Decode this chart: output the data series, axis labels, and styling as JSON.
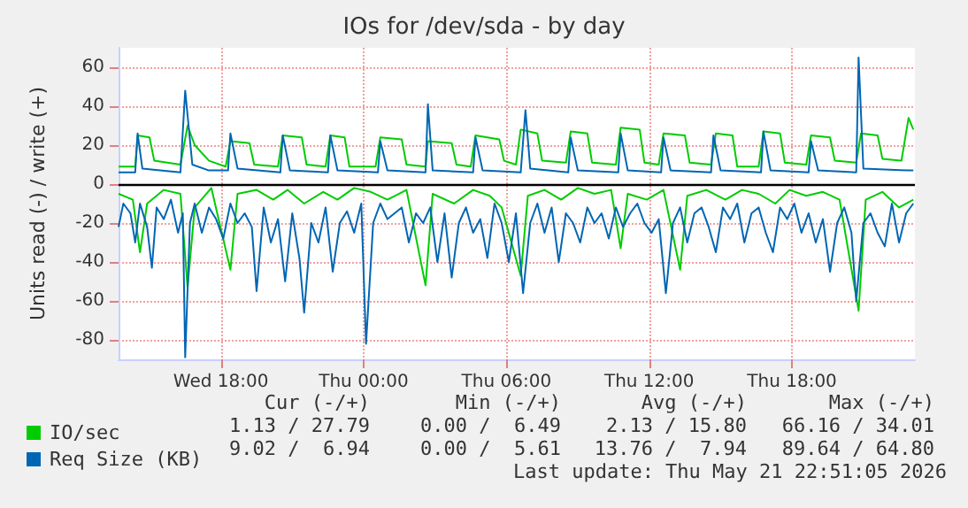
{
  "chart_data": {
    "type": "line",
    "title": "IOs for /dev/sda - by day",
    "ylabel": "Units read (-) / write (+)",
    "xlim": [
      "2026-05-20T13:42",
      "2026-05-21T23:10"
    ],
    "xticks": [
      {
        "value": "2026-05-20T18:00",
        "label": "Wed 18:00"
      },
      {
        "value": "2026-05-21T00:00",
        "label": "Thu 00:00"
      },
      {
        "value": "2026-05-21T06:00",
        "label": "Thu 06:00"
      },
      {
        "value": "2026-05-21T12:00",
        "label": "Thu 12:00"
      },
      {
        "value": "2026-05-21T18:00",
        "label": "Thu 18:00"
      }
    ],
    "ylim": [
      -90,
      70
    ],
    "yticks": [
      -80,
      -60,
      -40,
      -20,
      0,
      20,
      40,
      60
    ],
    "grid": true,
    "legend": "bottom left",
    "marker": "none",
    "line_style": "solid",
    "ref_lines": [
      {
        "axis": "y",
        "value": 0,
        "color": "#000000"
      }
    ],
    "annotations": [
      "Cur (-/+)",
      "Min (-/+)",
      "Avg (-/+)",
      "Max (-/+)",
      "1.13 / 27.79",
      "0.00 /  6.49",
      "2.13 / 15.80",
      "66.16 / 34.01",
      "9.02 /  6.94",
      "0.00 /  5.61",
      "13.76 /  7.94",
      "89.64 / 64.80",
      "Last update: Thu May 21 22:51:05 2026"
    ],
    "series": [
      {
        "name": null,
        "color": "#00cc00",
        "x": [
          "2026-05-20T13:42",
          "2026-05-20T14:18",
          "2026-05-20T14:36",
          "2026-05-20T14:54",
          "2026-05-20T15:36",
          "2026-05-20T16:18",
          "2026-05-20T16:36",
          "2026-05-20T16:54",
          "2026-05-20T17:36",
          "2026-05-20T18:24",
          "2026-05-20T18:42",
          "2026-05-20T19:30",
          "2026-05-20T20:12",
          "2026-05-20T20:48",
          "2026-05-20T21:30",
          "2026-05-20T22:18",
          "2026-05-20T22:54",
          "2026-05-20T23:36",
          "2026-05-21T00:18",
          "2026-05-21T01:00",
          "2026-05-21T01:48",
          "2026-05-21T02:36",
          "2026-05-21T02:54",
          "2026-05-21T03:48",
          "2026-05-21T04:36",
          "2026-05-21T05:18",
          "2026-05-21T05:48",
          "2026-05-21T06:36",
          "2026-05-21T06:54",
          "2026-05-21T07:36",
          "2026-05-21T08:18",
          "2026-05-21T09:00",
          "2026-05-21T09:42",
          "2026-05-21T10:24",
          "2026-05-21T10:48",
          "2026-05-21T11:06",
          "2026-05-21T11:54",
          "2026-05-21T12:36",
          "2026-05-21T13:18",
          "2026-05-21T13:36",
          "2026-05-21T14:24",
          "2026-05-21T15:12",
          "2026-05-21T15:54",
          "2026-05-21T16:36",
          "2026-05-21T17:18",
          "2026-05-21T17:54",
          "2026-05-21T18:36",
          "2026-05-21T19:18",
          "2026-05-21T20:00",
          "2026-05-21T20:48",
          "2026-05-21T21:06",
          "2026-05-21T21:48",
          "2026-05-21T22:30",
          "2026-05-21T23:06"
        ],
        "values": [
          -5,
          -8,
          -35,
          -10,
          -3,
          -5,
          -53,
          -12,
          -2,
          -44,
          -5,
          -3,
          -8,
          -3,
          -10,
          -4,
          -8,
          -2,
          -4,
          -8,
          -3,
          -52,
          -5,
          -10,
          -3,
          -6,
          -12,
          -47,
          -6,
          -3,
          -8,
          -2,
          -5,
          -3,
          -33,
          -5,
          -8,
          -3,
          -44,
          -6,
          -3,
          -8,
          -3,
          -5,
          -10,
          -3,
          -6,
          -4,
          -8,
          -65,
          -8,
          -4,
          -12,
          -8
        ]
      },
      {
        "name": null,
        "color": "#0066b3",
        "x": [
          "2026-05-20T13:42",
          "2026-05-20T13:54",
          "2026-05-20T14:12",
          "2026-05-20T14:24",
          "2026-05-20T14:36",
          "2026-05-20T14:54",
          "2026-05-20T15:06",
          "2026-05-20T15:18",
          "2026-05-20T15:36",
          "2026-05-20T15:54",
          "2026-05-20T16:12",
          "2026-05-20T16:24",
          "2026-05-20T16:30",
          "2026-05-20T16:42",
          "2026-05-20T16:54",
          "2026-05-20T17:12",
          "2026-05-20T17:30",
          "2026-05-20T17:48",
          "2026-05-20T18:06",
          "2026-05-20T18:24",
          "2026-05-20T18:42",
          "2026-05-20T19:00",
          "2026-05-20T19:18",
          "2026-05-20T19:30",
          "2026-05-20T19:48",
          "2026-05-20T20:06",
          "2026-05-20T20:24",
          "2026-05-20T20:42",
          "2026-05-20T21:00",
          "2026-05-20T21:18",
          "2026-05-20T21:30",
          "2026-05-20T21:48",
          "2026-05-20T22:06",
          "2026-05-20T22:24",
          "2026-05-20T22:42",
          "2026-05-20T23:00",
          "2026-05-20T23:18",
          "2026-05-20T23:36",
          "2026-05-20T23:54",
          "2026-05-21T00:06",
          "2026-05-21T00:24",
          "2026-05-21T00:42",
          "2026-05-21T01:00",
          "2026-05-21T01:18",
          "2026-05-21T01:36",
          "2026-05-21T01:54",
          "2026-05-21T02:12",
          "2026-05-21T02:30",
          "2026-05-21T02:48",
          "2026-05-21T03:06",
          "2026-05-21T03:24",
          "2026-05-21T03:42",
          "2026-05-21T04:00",
          "2026-05-21T04:18",
          "2026-05-21T04:36",
          "2026-05-21T04:54",
          "2026-05-21T05:12",
          "2026-05-21T05:30",
          "2026-05-21T05:48",
          "2026-05-21T06:06",
          "2026-05-21T06:24",
          "2026-05-21T06:42",
          "2026-05-21T07:00",
          "2026-05-21T07:18",
          "2026-05-21T07:36",
          "2026-05-21T07:54",
          "2026-05-21T08:12",
          "2026-05-21T08:30",
          "2026-05-21T08:48",
          "2026-05-21T09:06",
          "2026-05-21T09:24",
          "2026-05-21T09:42",
          "2026-05-21T10:00",
          "2026-05-21T10:18",
          "2026-05-21T10:36",
          "2026-05-21T10:54",
          "2026-05-21T11:12",
          "2026-05-21T11:30",
          "2026-05-21T11:48",
          "2026-05-21T12:06",
          "2026-05-21T12:24",
          "2026-05-21T12:42",
          "2026-05-21T13:00",
          "2026-05-21T13:18",
          "2026-05-21T13:36",
          "2026-05-21T13:54",
          "2026-05-21T14:12",
          "2026-05-21T14:30",
          "2026-05-21T14:48",
          "2026-05-21T15:06",
          "2026-05-21T15:24",
          "2026-05-21T15:42",
          "2026-05-21T16:00",
          "2026-05-21T16:18",
          "2026-05-21T16:36",
          "2026-05-21T16:54",
          "2026-05-21T17:12",
          "2026-05-21T17:30",
          "2026-05-21T17:48",
          "2026-05-21T18:06",
          "2026-05-21T18:24",
          "2026-05-21T18:42",
          "2026-05-21T19:00",
          "2026-05-21T19:18",
          "2026-05-21T19:36",
          "2026-05-21T19:54",
          "2026-05-21T20:12",
          "2026-05-21T20:30",
          "2026-05-21T20:42",
          "2026-05-21T21:00",
          "2026-05-21T21:18",
          "2026-05-21T21:36",
          "2026-05-21T21:54",
          "2026-05-21T22:12",
          "2026-05-21T22:30",
          "2026-05-21T22:48",
          "2026-05-21T23:06"
        ],
        "values": [
          -22,
          -10,
          -15,
          -30,
          -10,
          -22,
          -43,
          -12,
          -18,
          -8,
          -25,
          -15,
          -89,
          -20,
          -10,
          -25,
          -12,
          -18,
          -28,
          -10,
          -20,
          -15,
          -22,
          -55,
          -12,
          -30,
          -18,
          -50,
          -15,
          -38,
          -66,
          -20,
          -30,
          -12,
          -45,
          -20,
          -14,
          -25,
          -10,
          -82,
          -20,
          -10,
          -18,
          -15,
          -12,
          -30,
          -15,
          -20,
          -12,
          -40,
          -15,
          -48,
          -20,
          -12,
          -25,
          -18,
          -38,
          -10,
          -20,
          -40,
          -15,
          -56,
          -20,
          -10,
          -25,
          -12,
          -40,
          -15,
          -20,
          -30,
          -12,
          -20,
          -15,
          -28,
          -12,
          -22,
          -15,
          -10,
          -20,
          -25,
          -18,
          -56,
          -20,
          -12,
          -30,
          -15,
          -12,
          -22,
          -35,
          -12,
          -18,
          -10,
          -30,
          -15,
          -12,
          -25,
          -35,
          -12,
          -18,
          -10,
          -25,
          -15,
          -30,
          -18,
          -45,
          -20,
          -12,
          -25,
          -60,
          -20,
          -15,
          -25,
          -32,
          -10,
          -30,
          -15,
          -10
        ]
      },
      {
        "name": "IO/sec",
        "color": "#00cc00",
        "x": [
          "2026-05-20T13:42",
          "2026-05-20T14:24",
          "2026-05-20T14:30",
          "2026-05-20T15:00",
          "2026-05-20T15:12",
          "2026-05-20T16:18",
          "2026-05-20T16:36",
          "2026-05-20T16:54",
          "2026-05-20T17:30",
          "2026-05-20T18:12",
          "2026-05-20T18:24",
          "2026-05-20T19:12",
          "2026-05-20T19:24",
          "2026-05-20T20:24",
          "2026-05-20T20:36",
          "2026-05-20T21:24",
          "2026-05-20T21:36",
          "2026-05-20T22:24",
          "2026-05-20T22:36",
          "2026-05-20T23:12",
          "2026-05-20T23:24",
          "2026-05-21T00:30",
          "2026-05-21T00:42",
          "2026-05-21T01:36",
          "2026-05-21T01:48",
          "2026-05-21T02:36",
          "2026-05-21T02:42",
          "2026-05-21T03:42",
          "2026-05-21T03:54",
          "2026-05-21T04:30",
          "2026-05-21T04:42",
          "2026-05-21T05:42",
          "2026-05-21T05:54",
          "2026-05-21T06:24",
          "2026-05-21T06:36",
          "2026-05-21T07:18",
          "2026-05-21T07:30",
          "2026-05-21T08:30",
          "2026-05-21T08:42",
          "2026-05-21T09:24",
          "2026-05-21T09:36",
          "2026-05-21T10:36",
          "2026-05-21T10:48",
          "2026-05-21T11:36",
          "2026-05-21T11:48",
          "2026-05-21T12:24",
          "2026-05-21T12:36",
          "2026-05-21T13:30",
          "2026-05-21T13:42",
          "2026-05-21T14:36",
          "2026-05-21T14:48",
          "2026-05-21T15:30",
          "2026-05-21T15:42",
          "2026-05-21T16:36",
          "2026-05-21T16:48",
          "2026-05-21T17:30",
          "2026-05-21T17:42",
          "2026-05-21T18:36",
          "2026-05-21T18:48",
          "2026-05-21T19:36",
          "2026-05-21T19:48",
          "2026-05-21T20:42",
          "2026-05-21T20:54",
          "2026-05-21T21:36",
          "2026-05-21T21:48",
          "2026-05-21T22:36",
          "2026-05-21T22:54",
          "2026-05-21T23:06"
        ],
        "values": [
          9,
          9,
          25,
          24,
          12,
          10,
          30,
          20,
          12,
          9,
          22,
          21,
          10,
          9,
          25,
          24,
          10,
          9,
          25,
          24,
          9,
          9,
          24,
          23,
          10,
          9,
          22,
          21,
          10,
          9,
          25,
          23,
          12,
          10,
          28,
          26,
          12,
          11,
          27,
          26,
          11,
          10,
          29,
          28,
          11,
          10,
          26,
          25,
          11,
          10,
          26,
          25,
          9,
          9,
          27,
          26,
          11,
          10,
          25,
          24,
          12,
          11,
          26,
          25,
          13,
          12,
          34,
          28
        ]
      },
      {
        "name": "Req Size (KB)",
        "color": "#0066b3",
        "x": [
          "2026-05-20T13:42",
          "2026-05-20T14:24",
          "2026-05-20T14:30",
          "2026-05-20T14:42",
          "2026-05-20T16:18",
          "2026-05-20T16:30",
          "2026-05-20T16:48",
          "2026-05-20T17:30",
          "2026-05-20T18:18",
          "2026-05-20T18:24",
          "2026-05-20T18:42",
          "2026-05-20T20:30",
          "2026-05-20T20:36",
          "2026-05-20T20:54",
          "2026-05-20T22:30",
          "2026-05-20T22:36",
          "2026-05-20T22:54",
          "2026-05-21T00:36",
          "2026-05-21T00:42",
          "2026-05-21T01:00",
          "2026-05-21T02:36",
          "2026-05-21T02:42",
          "2026-05-21T02:54",
          "2026-05-21T04:36",
          "2026-05-21T04:42",
          "2026-05-21T05:00",
          "2026-05-21T06:36",
          "2026-05-21T06:48",
          "2026-05-21T07:00",
          "2026-05-21T08:36",
          "2026-05-21T08:42",
          "2026-05-21T09:00",
          "2026-05-21T10:42",
          "2026-05-21T10:48",
          "2026-05-21T11:06",
          "2026-05-21T12:30",
          "2026-05-21T12:36",
          "2026-05-21T12:54",
          "2026-05-21T14:36",
          "2026-05-21T14:42",
          "2026-05-21T15:00",
          "2026-05-21T16:42",
          "2026-05-21T16:48",
          "2026-05-21T17:06",
          "2026-05-21T18:42",
          "2026-05-21T18:48",
          "2026-05-21T19:06",
          "2026-05-21T20:42",
          "2026-05-21T20:48",
          "2026-05-21T21:00",
          "2026-05-21T22:54",
          "2026-05-21T23:06"
        ],
        "values": [
          6,
          6,
          26,
          8,
          6,
          48,
          10,
          7,
          7,
          26,
          8,
          6,
          25,
          7,
          6,
          25,
          7,
          6,
          22,
          7,
          6,
          41,
          7,
          6,
          24,
          7,
          6,
          38,
          8,
          6,
          24,
          7,
          6,
          26,
          7,
          6,
          24,
          7,
          6,
          25,
          7,
          6,
          27,
          7,
          6,
          22,
          7,
          6,
          65,
          8,
          7,
          7
        ]
      }
    ]
  }
}
